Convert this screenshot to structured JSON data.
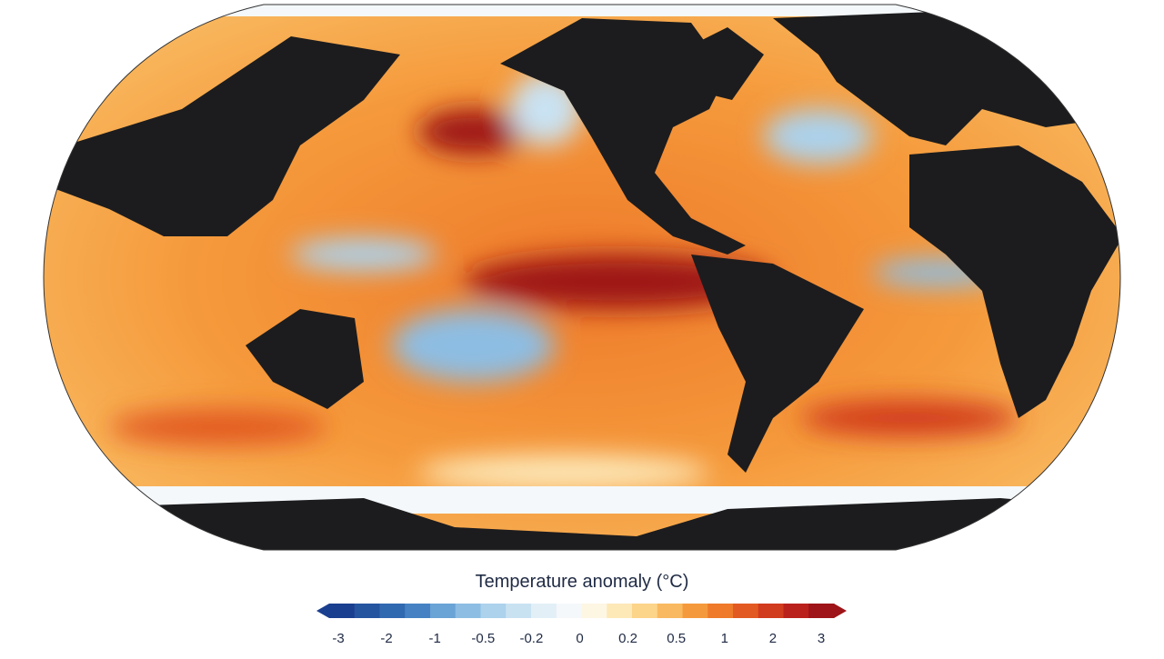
{
  "map": {
    "colorbar": {
      "title": "Temperature anomaly (°C)",
      "ticks": [
        -3,
        -2,
        -1,
        -0.5,
        -0.2,
        0,
        0.2,
        0.5,
        1,
        2,
        3
      ],
      "colors": [
        "#1b3f8f",
        "#25559f",
        "#3169b0",
        "#4682c3",
        "#6aa3d5",
        "#8dbde3",
        "#acd2ec",
        "#c9e2f2",
        "#e2eff7",
        "#f4f8fb",
        "#fdf6e3",
        "#fde8b8",
        "#fcd48a",
        "#f9b960",
        "#f59a3c",
        "#ee7a2a",
        "#e25a22",
        "#d13b1e",
        "#ba211c",
        "#9e1418"
      ]
    }
  }
}
